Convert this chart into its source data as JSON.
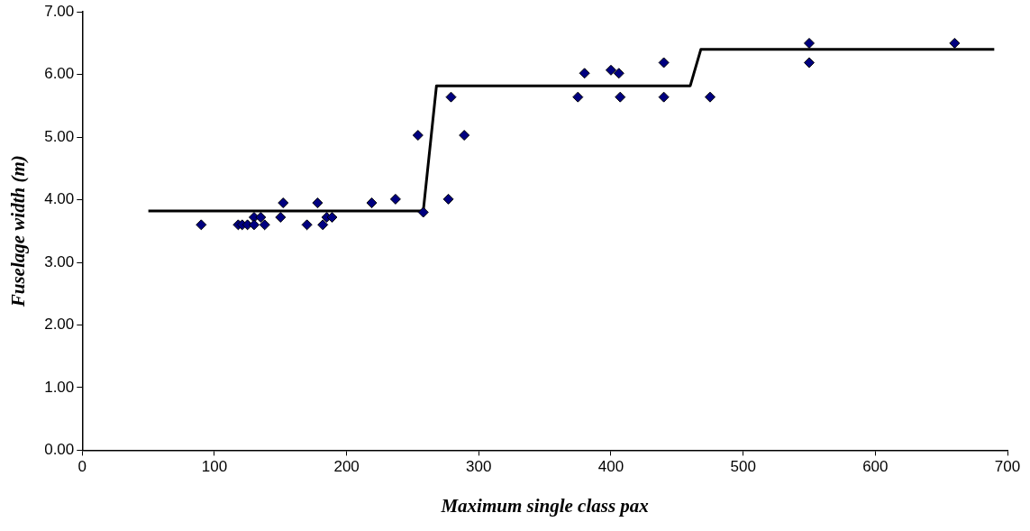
{
  "chart_data": {
    "type": "scatter",
    "xlabel": "Maximum single class pax",
    "ylabel": "Fuselage width (m)",
    "xlim": [
      0,
      700
    ],
    "xticks": [
      0,
      100,
      200,
      300,
      400,
      500,
      600,
      700
    ],
    "ylim": [
      0,
      7
    ],
    "yticks": [
      {
        "value": 0,
        "label": "0.00"
      },
      {
        "value": 1,
        "label": "1.00"
      },
      {
        "value": 2,
        "label": "2.00"
      },
      {
        "value": 3,
        "label": "3.00"
      },
      {
        "value": 4,
        "label": "4.00"
      },
      {
        "value": 5,
        "label": "5.00"
      },
      {
        "value": 6,
        "label": "6.00"
      },
      {
        "value": 7,
        "label": "7.00"
      }
    ],
    "grid": false,
    "legend": false,
    "marker": "diamond",
    "series": [
      {
        "type": "scatter",
        "color": "#000080",
        "x": [
          90,
          116,
          118,
          121,
          125,
          130,
          130,
          135,
          138,
          148,
          150,
          152,
          170,
          178,
          182,
          185,
          189,
          219,
          237,
          254,
          258,
          277,
          279,
          289,
          375,
          380,
          400,
          406,
          407,
          440,
          440,
          475,
          550,
          550,
          660
        ],
        "values": [
          3.6,
          null,
          3.6,
          3.6,
          3.6,
          3.72,
          3.6,
          3.72,
          3.6,
          null,
          3.72,
          3.95,
          3.6,
          3.95,
          3.6,
          3.72,
          3.72,
          3.95,
          4.01,
          5.03,
          3.8,
          4.01,
          5.64,
          5.03,
          5.64,
          6.02,
          6.07,
          6.02,
          5.64,
          5.64,
          6.19,
          5.64,
          6.5,
          6.19,
          6.5
        ]
      },
      {
        "type": "line",
        "color": "#000000",
        "marker": "none",
        "line_style": "solid",
        "x": [
          50,
          258,
          268,
          460,
          468,
          690
        ],
        "values": [
          3.82,
          3.82,
          5.82,
          5.82,
          6.4,
          6.4
        ]
      }
    ]
  }
}
